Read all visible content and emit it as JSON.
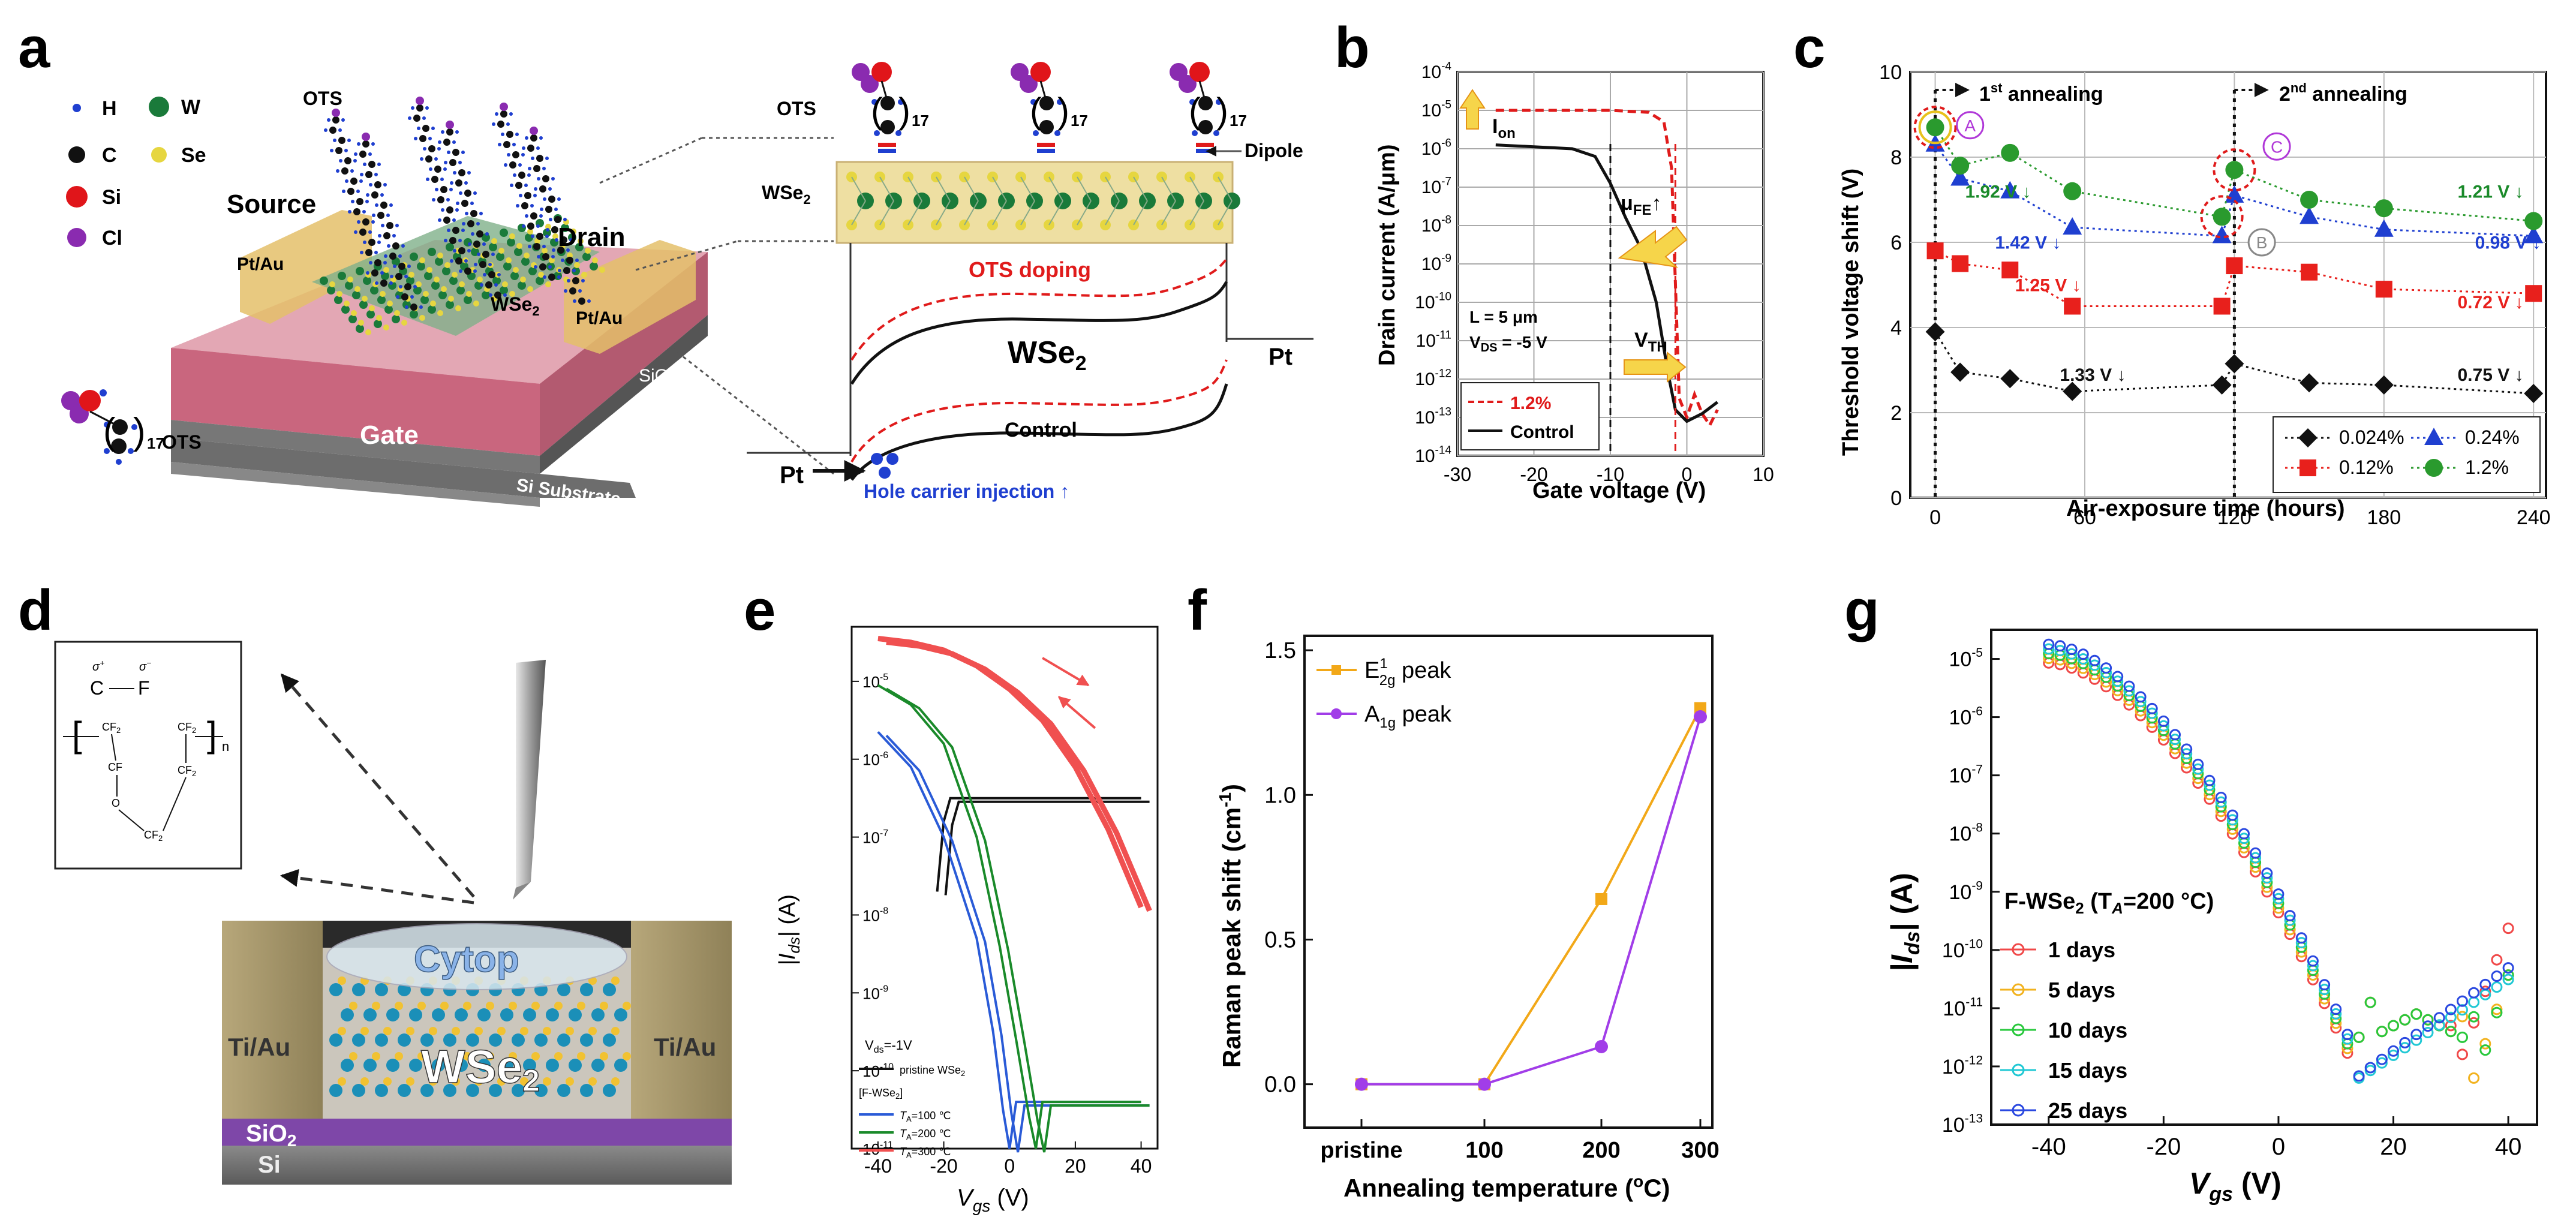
{
  "panel_letters": [
    "a",
    "b",
    "c",
    "d",
    "e",
    "f",
    "g"
  ],
  "panel_a": {
    "legend": {
      "H": "H",
      "W": "W",
      "C": "C",
      "Se": "Se",
      "Si": "Si",
      "Cl": "Cl"
    },
    "labels": {
      "ots_top": "OTS",
      "source": "Source",
      "drain": "Drain",
      "pt_au_left": "Pt/Au",
      "pt_au_right": "Pt/Au",
      "wse2_device": "WSe",
      "wse2_sub": "2",
      "sio2": "SiO",
      "sio2_sub": "2",
      "gate": "Gate",
      "si_substrate": "Si Substrate",
      "ots_molecule": "OTS",
      "ots_subscript": "17",
      "inset_ots": "OTS",
      "inset_wse2": "WSe",
      "inset_wse2_sub": "2",
      "dipole": "Dipole",
      "ots_doping": "OTS doping",
      "band_wse2": "WSe",
      "band_wse2_sub": "2",
      "pt_right": "Pt",
      "pt_left": "Pt",
      "control": "Control",
      "hole_injection": "Hole carrier injection ↑"
    },
    "colors": {
      "H": "#1f3fd0",
      "W": "#1a7a3a",
      "C": "#111111",
      "Se": "#e6d640",
      "Si": "#e0151a",
      "Cl": "#8a2bb0"
    }
  },
  "panel_b": {
    "chart_data": {
      "type": "line",
      "xlabel": "Gate voltage (V)",
      "ylabel": "Drain current (A/μm)",
      "xlim": [
        -30,
        10
      ],
      "ylim_log10": [
        -14,
        -4
      ],
      "x_ticks": [
        "-30",
        "-20",
        "-10",
        "0",
        "10"
      ],
      "y_ticks": [
        "10-14",
        "10-13",
        "10-12",
        "10-11",
        "10-10",
        "10-9",
        "10-8",
        "10-7",
        "10-6",
        "10-5",
        "10-4"
      ],
      "series": [
        {
          "name": "1.2%",
          "color": "#e01b1b",
          "style": "dashed",
          "points": [
            [
              -25,
              -5.0
            ],
            [
              -10,
              -5.0
            ],
            [
              -5,
              -5.05
            ],
            [
              -3,
              -5.3
            ],
            [
              -2,
              -6.5
            ],
            [
              -1.5,
              -9.5
            ],
            [
              -1,
              -12.5
            ],
            [
              0,
              -13.0
            ],
            [
              1,
              -12.4
            ],
            [
              2,
              -12.9
            ],
            [
              3,
              -13.2
            ],
            [
              4,
              -12.8
            ]
          ]
        },
        {
          "name": "Control",
          "color": "#111111",
          "style": "solid",
          "points": [
            [
              -25,
              -5.9
            ],
            [
              -15,
              -6.0
            ],
            [
              -12,
              -6.2
            ],
            [
              -10,
              -6.9
            ],
            [
              -8,
              -7.8
            ],
            [
              -6,
              -8.6
            ],
            [
              -4,
              -10.0
            ],
            [
              -2.5,
              -11.8
            ],
            [
              -1.5,
              -12.8
            ],
            [
              0,
              -13.1
            ],
            [
              2,
              -12.9
            ],
            [
              4,
              -12.6
            ]
          ]
        }
      ],
      "annotations": {
        "ion": "I",
        "ion_sub": "on",
        "mufe": "μ",
        "mufe_sub": "FE",
        "vth": "V",
        "vth_sub": "TH",
        "length": "L = 5 μm",
        "vds": "V",
        "vds_sub": "DS",
        "vds_val": " = -5 V"
      },
      "legend_position": "bottom-left",
      "grid": true
    }
  },
  "panel_c": {
    "chart_data": {
      "type": "line",
      "xlabel": "Air-exposure  time  (hours)",
      "ylabel": "Threshold voltage shift (V)",
      "xlim": [
        -10,
        245
      ],
      "ylim": [
        0,
        10
      ],
      "x_ticks": [
        "0",
        "60",
        "120",
        "180",
        "240"
      ],
      "y_ticks": [
        "0",
        "2",
        "4",
        "6",
        "8",
        "10"
      ],
      "series": [
        {
          "name": "0.024%",
          "color": "#111111",
          "marker": "diamond",
          "x": [
            0,
            10,
            30,
            55,
            115,
            120,
            150,
            180,
            240
          ],
          "y": [
            3.9,
            2.95,
            2.8,
            2.5,
            2.65,
            3.15,
            2.7,
            2.65,
            2.45
          ]
        },
        {
          "name": "0.12%",
          "color": "#e8201c",
          "marker": "square",
          "x": [
            0,
            10,
            30,
            55,
            115,
            120,
            150,
            180,
            240
          ],
          "y": [
            5.8,
            5.5,
            5.35,
            4.5,
            4.5,
            5.45,
            5.3,
            4.9,
            4.8
          ]
        },
        {
          "name": "0.24%",
          "color": "#1f3fd0",
          "marker": "triangle",
          "x": [
            0,
            10,
            30,
            55,
            115,
            120,
            150,
            180,
            240
          ],
          "y": [
            8.3,
            7.5,
            7.2,
            6.35,
            6.15,
            7.1,
            6.6,
            6.3,
            6.15
          ]
        },
        {
          "name": "1.2%",
          "color": "#2a9a2e",
          "marker": "circle",
          "x": [
            0,
            10,
            30,
            55,
            115,
            120,
            150,
            180,
            240
          ],
          "y": [
            8.7,
            7.8,
            8.1,
            7.2,
            6.6,
            7.7,
            7.0,
            6.8,
            6.5
          ]
        }
      ],
      "annotations": {
        "annealing1": "1",
        "annealing1_sup": "st",
        "annealing1_rest": " annealing",
        "annealing2": "2",
        "annealing2_sup": "nd",
        "annealing2_rest": " annealing",
        "circleA": "A",
        "circleB": "B",
        "circleC": "C",
        "d_green_1": "1.92 V ↓",
        "d_blue_1": "1.42 V ↓",
        "d_red_1": "1.25 V ↓",
        "d_black_1": "1.33 V ↓",
        "d_green_2": "1.21 V ↓",
        "d_blue_2": "0.98 V ↓",
        "d_red_2": "0.72 V ↓",
        "d_black_2": "0.75 V ↓"
      },
      "legend_position": "bottom-right",
      "grid": true
    }
  },
  "panel_d": {
    "labels": {
      "sigma_plus": "σ",
      "sigma_plus_sup": "+",
      "sigma_minus": "σ",
      "sigma_minus_sup": "−",
      "c": "C",
      "f": "F",
      "cf2": "CF",
      "cf2_sub": "2",
      "cf": "CF",
      "o": "O",
      "n": "n",
      "cytop": "Cytop",
      "wse2": "WSe",
      "wse2_sub": "2",
      "ti_au_left": "Ti/Au",
      "ti_au_right": "Ti/Au",
      "sio2": "SiO",
      "sio2_sub": "2",
      "si": "Si"
    }
  },
  "panel_e": {
    "chart_data": {
      "type": "line",
      "xlabel": "V",
      "xlabel_sub": "gs",
      "xlabel_unit": " (V)",
      "ylabel": "|I",
      "ylabel_sub": "ds",
      "ylabel_unit": "| (A)",
      "xlim": [
        -48,
        45
      ],
      "ylim_log10": [
        -11,
        -4.3
      ],
      "x_ticks": [
        "-40",
        "-20",
        "0",
        "20",
        "40"
      ],
      "y_ticks": [
        "10-11",
        "10-10",
        "10-9",
        "10-8",
        "10-7",
        "10-6",
        "10-5"
      ],
      "series": [
        {
          "name": "pristine WSe",
          "name_sub": "2",
          "color": "#111111",
          "points": [
            [
              -22,
              -7.7
            ],
            [
              -20,
              -6.8
            ],
            [
              -18,
              -6.5
            ],
            [
              -14,
              -6.5
            ],
            [
              40,
              -6.5
            ]
          ]
        },
        {
          "name": "T",
          "name_sub": "A",
          "name_rest": "=100 ℃",
          "color": "#2a5bd7",
          "points": [
            [
              -40,
              -5.65
            ],
            [
              -30,
              -6.1
            ],
            [
              -20,
              -7.0
            ],
            [
              -10,
              -8.3
            ],
            [
              -5,
              -9.5
            ],
            [
              -2,
              -10.5
            ],
            [
              0,
              -11.0
            ],
            [
              2,
              -10.4
            ],
            [
              10,
              -10.4
            ],
            [
              40,
              -10.4
            ]
          ]
        },
        {
          "name": "T",
          "name_sub": "A",
          "name_rest": "=200 ℃",
          "color": "#1a8a2a",
          "points": [
            [
              -40,
              -5.05
            ],
            [
              -30,
              -5.3
            ],
            [
              -20,
              -5.8
            ],
            [
              -10,
              -7.0
            ],
            [
              -3,
              -8.4
            ],
            [
              2,
              -9.6
            ],
            [
              6,
              -10.6
            ],
            [
              8,
              -11.0
            ],
            [
              10,
              -10.4
            ],
            [
              40,
              -10.4
            ]
          ]
        },
        {
          "name": "T",
          "name_sub": "A",
          "name_rest": "=300 ℃",
          "color": "#f05050",
          "points": [
            [
              -40,
              -4.45
            ],
            [
              -30,
              -4.5
            ],
            [
              -20,
              -4.6
            ],
            [
              -10,
              -4.8
            ],
            [
              0,
              -5.1
            ],
            [
              10,
              -5.5
            ],
            [
              20,
              -6.1
            ],
            [
              30,
              -6.9
            ],
            [
              40,
              -7.9
            ]
          ]
        }
      ],
      "annotations": {
        "vds": "V",
        "vds_sub": "ds",
        "vds_rest": "=-1V",
        "group": "[F-WSe",
        "group_sub": "2",
        "group_end": "]"
      },
      "legend_position": "bottom-left"
    }
  },
  "panel_f": {
    "chart_data": {
      "type": "line",
      "xlabel": "Annealing temperature (",
      "xlabel_deg": "o",
      "xlabel_end": "C)",
      "ylabel": "Raman peak shift (cm",
      "ylabel_sup": "-1",
      "ylabel_end": ")",
      "categories": [
        "pristine",
        "100",
        "200",
        "300"
      ],
      "ylim": [
        -0.15,
        1.55
      ],
      "y_ticks": [
        "0.0",
        "0.5",
        "1.0",
        "1.5"
      ],
      "series": [
        {
          "name": "E",
          "name_sup": "1",
          "name_sub": "2g",
          "name_rest": " peak",
          "color": "#f2a818",
          "marker": "square",
          "values": [
            0.0,
            0.0,
            0.64,
            1.3
          ]
        },
        {
          "name": "A",
          "name_sub": "1g",
          "name_rest": " peak",
          "color": "#a13de8",
          "marker": "circle",
          "values": [
            0.0,
            0.0,
            0.13,
            1.27
          ]
        }
      ],
      "legend_position": "top-left"
    }
  },
  "panel_g": {
    "chart_data": {
      "type": "scatter",
      "xlabel": "V",
      "xlabel_sub": "gs",
      "xlabel_unit": " (V)",
      "ylabel": "|I",
      "ylabel_sub": "ds",
      "ylabel_unit": "| (A)",
      "xlim": [
        -50,
        45
      ],
      "ylim_log10": [
        -13,
        -4.5
      ],
      "x_ticks": [
        "-40",
        "-20",
        "0",
        "20",
        "40"
      ],
      "y_ticks": [
        "10-13",
        "10-12",
        "10-11",
        "10-10",
        "10-9",
        "10-8",
        "10-7",
        "10-6",
        "10-5"
      ],
      "series": [
        {
          "name": "1 days",
          "color": "#f04848",
          "min_x": 30.5,
          "right_end": -9.6
        },
        {
          "name": "5 days",
          "color": "#f2b21e",
          "min_x": 34,
          "right_end": -10.4
        },
        {
          "name": "10 days",
          "color": "#28c83c",
          "min_x": 34.5,
          "right_end": -10.4
        },
        {
          "name": "15 days",
          "color": "#20c8d4",
          "min_x": 14,
          "right_end": -10.5
        },
        {
          "name": "25 days",
          "color": "#2a48e0",
          "min_x": 13.5,
          "right_end": -10.3
        }
      ],
      "annotations": {
        "title": "F-WSe",
        "title_sub": "2",
        "title_mid": " (T",
        "title_sub2": "A",
        "title_end": "=200 °C)"
      },
      "legend_position": "middle-left"
    }
  }
}
